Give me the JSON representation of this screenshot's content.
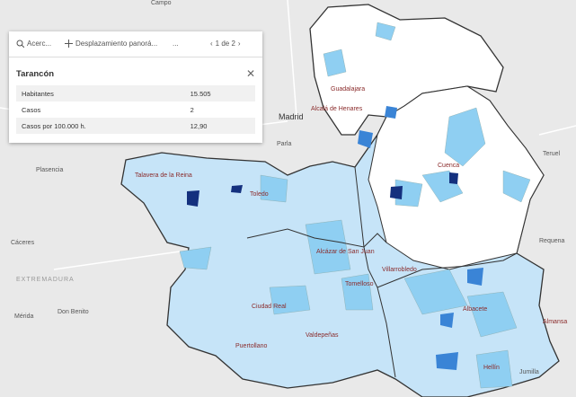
{
  "popup": {
    "toolbar": {
      "zoom": "Acerc...",
      "pan": "Desplazamiento panorá...",
      "more": "...",
      "pager": "1 de 2"
    },
    "title": "Tarancón",
    "rows": [
      [
        "Habitantes",
        "15.505"
      ],
      [
        "Casos",
        "2"
      ],
      [
        "Casos por 100.000 h.",
        "12,90"
      ]
    ]
  },
  "map": {
    "labels": [
      "Campo",
      "Madrid",
      "Alcalá de Henares",
      "Guadalajara",
      "Parla",
      "Plasencia",
      "Talavera de la Reina",
      "Toledo",
      "Cuenca",
      "Teruel",
      "Cáceres",
      "EXTREMADURA",
      "Requena",
      "Albacete",
      "Almansa",
      "Mérida",
      "Don Benito",
      "Ciudad Real",
      "Valdepeñas",
      "Puertollano",
      "Tomelloso",
      "Alcázar de San Juan",
      "Villarrobledo",
      "Hellín",
      "Jumilla"
    ]
  }
}
